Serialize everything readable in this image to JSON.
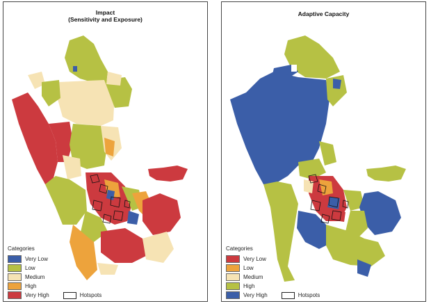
{
  "maps": [
    {
      "title_line1": "Impact",
      "title_line2": "(Sensitivity and Exposure)",
      "legend_heading": "Categories",
      "categories": [
        {
          "label": "Very Low",
          "color": "#3b5ea8"
        },
        {
          "label": "Low",
          "color": "#b6c144"
        },
        {
          "label": "Medium",
          "color": "#f6e3b4"
        },
        {
          "label": "High",
          "color": "#eda33c"
        },
        {
          "label": "Very High",
          "color": "#cc3a3f"
        }
      ],
      "hotspots_label": "Hotspots"
    },
    {
      "title_line1": "Adaptive Capacity",
      "title_line2": "",
      "legend_heading": "Categories",
      "categories": [
        {
          "label": "Very Low",
          "color": "#cc3a3f"
        },
        {
          "label": "Low",
          "color": "#eda33c"
        },
        {
          "label": "Medium",
          "color": "#f6e3b4"
        },
        {
          "label": "High",
          "color": "#b6c144"
        },
        {
          "label": "Very High",
          "color": "#3b5ea8"
        }
      ],
      "hotspots_label": "Hotspots"
    }
  ]
}
